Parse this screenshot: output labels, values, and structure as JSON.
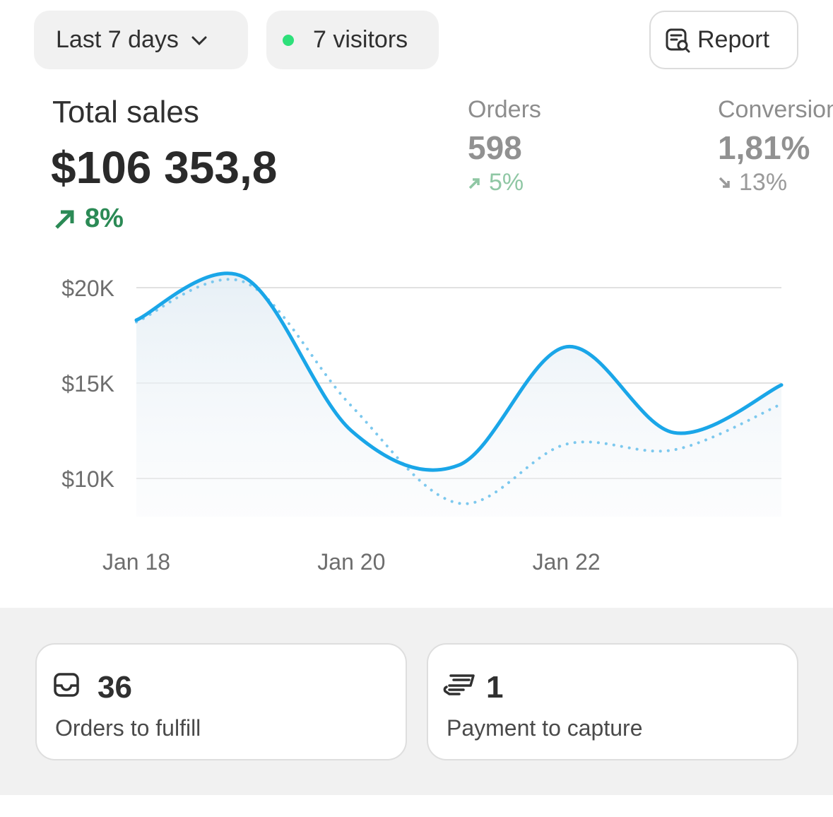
{
  "toolbar": {
    "date_range": "Last 7 days",
    "visitors": "7 visitors",
    "report": "Report"
  },
  "metrics": [
    {
      "label": "Total sales",
      "value": "$106 353,8",
      "change": "8%",
      "direction": "up"
    },
    {
      "label": "Orders",
      "value": "598",
      "change": "5%",
      "direction": "up"
    },
    {
      "label": "Conversion",
      "value": "1,81%",
      "change": "13%",
      "direction": "down"
    }
  ],
  "chart_data": {
    "type": "line",
    "categories": [
      "Jan 18",
      null,
      "Jan 20",
      null,
      "Jan 22",
      null,
      null
    ],
    "series": [
      {
        "color": "#1aa6e8",
        "style": "solid",
        "values": [
          18300,
          20550,
          12500,
          10700,
          16900,
          12400,
          14900
        ]
      },
      {
        "color": "#7cc8ee",
        "style": "dotted",
        "values": [
          18200,
          20300,
          13800,
          8700,
          11800,
          11500,
          13900
        ]
      }
    ],
    "ylim": [
      8000,
      21000
    ],
    "yticks": [
      {
        "value": 10000,
        "label": "$10K"
      },
      {
        "value": 15000,
        "label": "$15K"
      },
      {
        "value": 20000,
        "label": "$20K"
      }
    ],
    "grid": true
  },
  "cards": [
    {
      "value": "36",
      "label": "Orders to fulfill"
    },
    {
      "value": "1",
      "label": "Payment to capture"
    }
  ]
}
